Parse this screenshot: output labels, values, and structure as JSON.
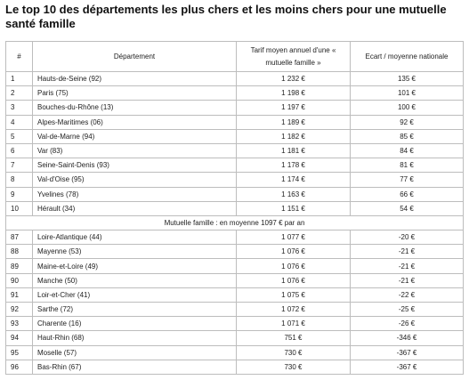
{
  "title": "Le top 10 des départements les plus chers et les moins chers pour une mutuelle santé famille",
  "table": {
    "header": [
      "#",
      "Département",
      "Tarif moyen annuel d'une « mutuelle famille »",
      "Ecart / moyenne nationale"
    ],
    "top_rows": [
      [
        "1",
        "Hauts-de-Seine (92)",
        "1 232 €",
        "135 €"
      ],
      [
        "2",
        "Paris (75)",
        "1 198 €",
        "101 €"
      ],
      [
        "3",
        "Bouches-du-Rhône (13)",
        "1 197 €",
        "100 €"
      ],
      [
        "4",
        "Alpes-Maritimes (06)",
        "1 189 €",
        "92 €"
      ],
      [
        "5",
        "Val-de-Marne (94)",
        "1 182 €",
        "85 €"
      ],
      [
        "6",
        "Var (83)",
        "1 181 €",
        "84 €"
      ],
      [
        "7",
        "Seine-Saint-Denis (93)",
        "1 178 €",
        "81 €"
      ],
      [
        "8",
        "Val-d'Oise (95)",
        "1 174 €",
        "77 €"
      ],
      [
        "9",
        "Yvelines (78)",
        "1 163 €",
        "66 €"
      ],
      [
        "10",
        "Hérault (34)",
        "1 151 €",
        "54 €"
      ]
    ],
    "summary": "Mutuelle famille : en moyenne 1097 € par an",
    "bottom_rows": [
      [
        "87",
        "Loire-Atlantique (44)",
        "1 077 €",
        "-20 €"
      ],
      [
        "88",
        "Mayenne (53)",
        "1 076 €",
        "-21 €"
      ],
      [
        "89",
        "Maine-et-Loire (49)",
        "1 076 €",
        "-21 €"
      ],
      [
        "90",
        "Manche (50)",
        "1 076 €",
        "-21 €"
      ],
      [
        "91",
        "Loir-et-Cher (41)",
        "1 075 €",
        "-22 €"
      ],
      [
        "92",
        "Sarthe (72)",
        "1 072 €",
        "-25 €"
      ],
      [
        "93",
        "Charente (16)",
        "1 071 €",
        "-26 €"
      ],
      [
        "94",
        "Haut-Rhin (68)",
        "751 €",
        "-346 €"
      ],
      [
        "95",
        "Moselle (57)",
        "730 €",
        "-367 €"
      ],
      [
        "96",
        "Bas-Rhin (67)",
        "730 €",
        "-367 €"
      ]
    ]
  }
}
